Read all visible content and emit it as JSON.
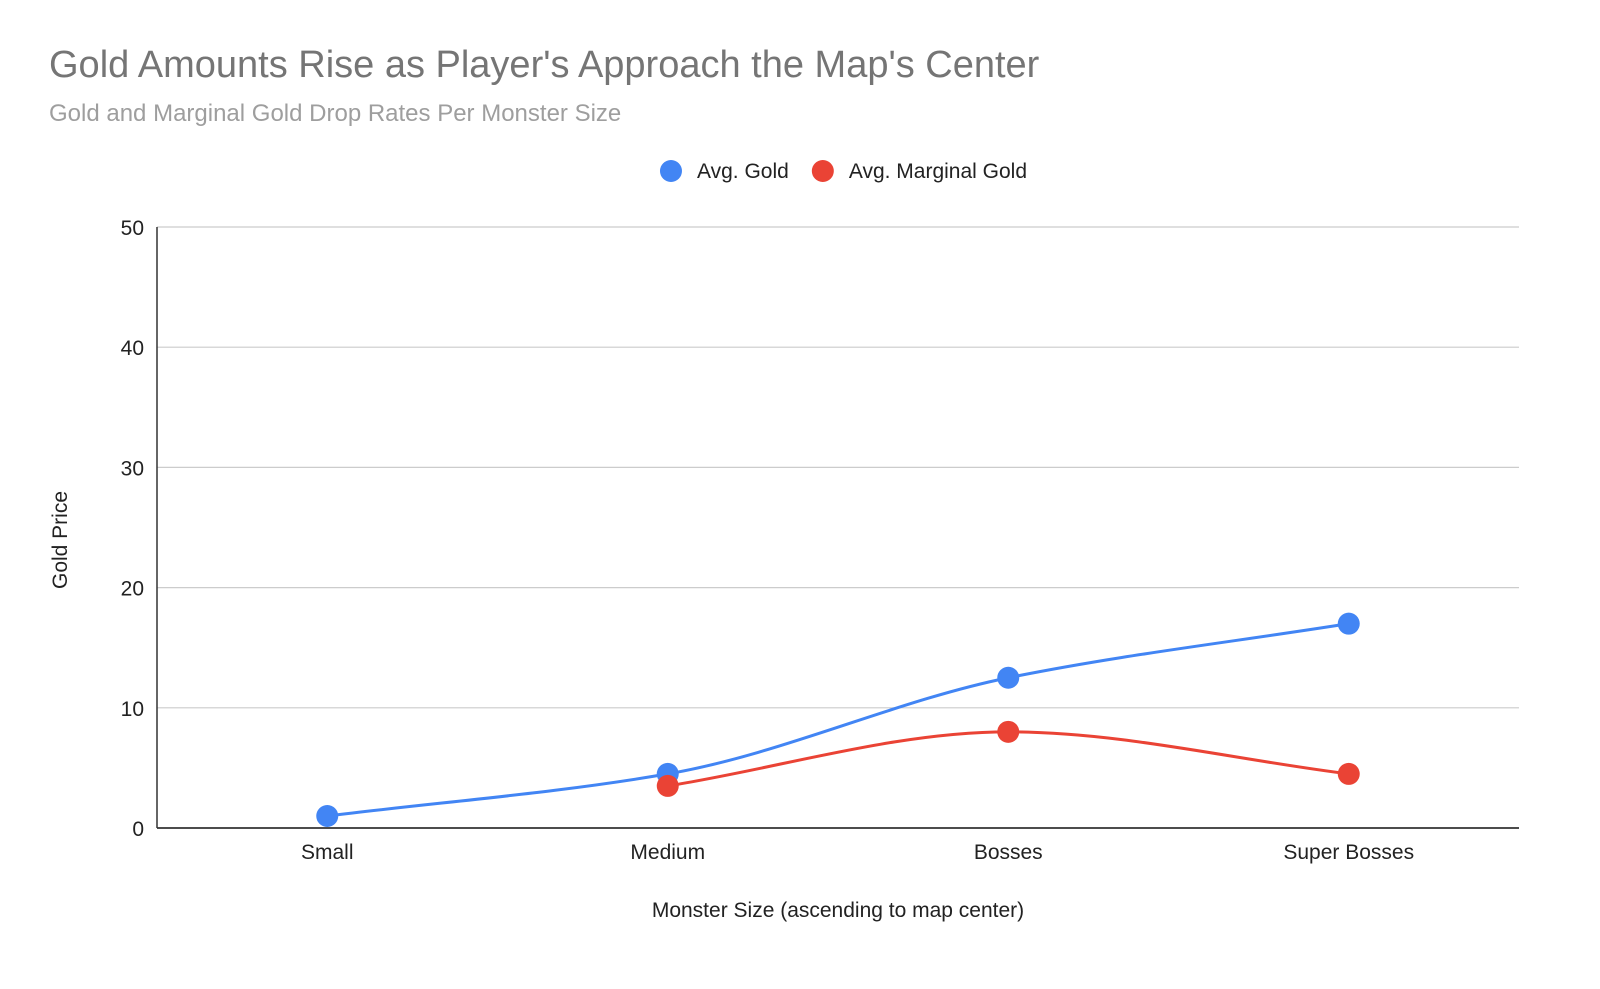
{
  "chart_data": {
    "type": "line",
    "title": "Gold Amounts Rise as Player's Approach the Map's Center",
    "subtitle": "Gold and Marginal Gold Drop Rates Per Monster Size",
    "xlabel": "Monster Size (ascending to map center)",
    "ylabel": "Gold Price",
    "categories": [
      "Small",
      "Medium",
      "Bosses",
      "Super Bosses"
    ],
    "ylim": [
      0,
      50
    ],
    "yticks": [
      "0",
      "10",
      "20",
      "30",
      "40",
      "50"
    ],
    "grid": true,
    "legend_position": "top",
    "smooth": true,
    "series": [
      {
        "name": "Avg. Gold",
        "color": "#4285f4",
        "values": [
          1,
          4.5,
          12.5,
          17
        ]
      },
      {
        "name": "Avg. Marginal Gold",
        "color": "#ea4335",
        "values": [
          null,
          3.5,
          8,
          4.5
        ]
      }
    ]
  }
}
